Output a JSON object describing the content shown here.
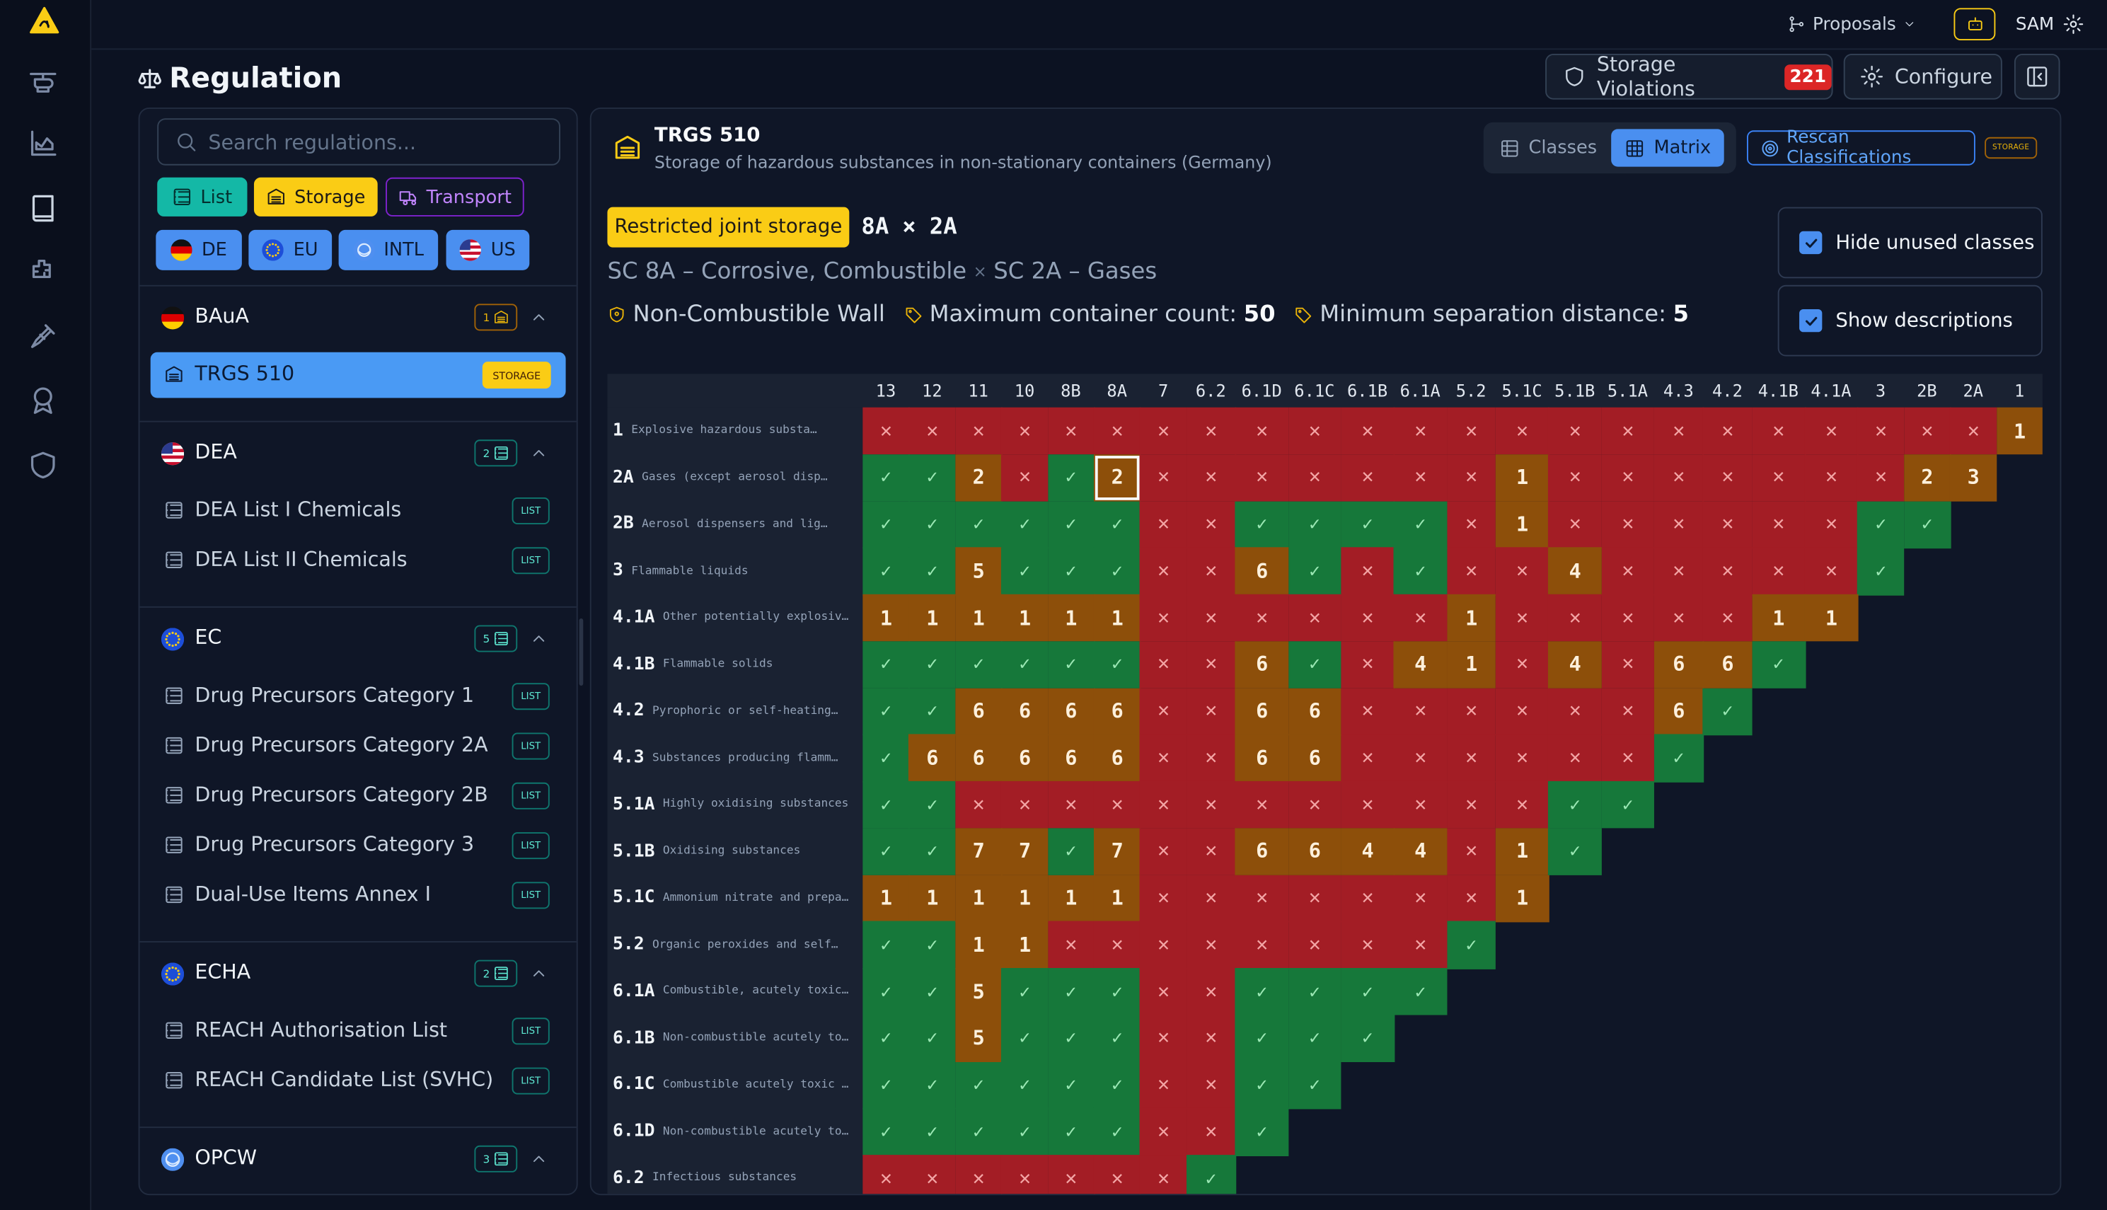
{
  "topbar": {
    "proposals": "Proposals",
    "user": "SAM"
  },
  "header": {
    "title": "Regulation",
    "violations_label": "Storage Violations",
    "violations_count": 221,
    "configure": "Configure"
  },
  "sidebar": {
    "search_placeholder": "Search regulations...",
    "modes": [
      "List",
      "Storage",
      "Transport"
    ],
    "regions": [
      "DE",
      "EU",
      "INTL",
      "US"
    ],
    "groups": [
      {
        "name": "BAuA",
        "count": 1,
        "items": [
          {
            "name": "TRGS 510",
            "tag": "STORAGE"
          }
        ]
      },
      {
        "name": "DEA",
        "count": 2,
        "items": [
          {
            "name": "DEA List I Chemicals",
            "tag": "LIST"
          },
          {
            "name": "DEA List II Chemicals",
            "tag": "LIST"
          }
        ]
      },
      {
        "name": "EC",
        "count": 5,
        "items": [
          {
            "name": "Drug Precursors Category 1",
            "tag": "LIST"
          },
          {
            "name": "Drug Precursors Category 2A",
            "tag": "LIST"
          },
          {
            "name": "Drug Precursors Category 2B",
            "tag": "LIST"
          },
          {
            "name": "Drug Precursors Category 3",
            "tag": "LIST"
          },
          {
            "name": "Dual-Use Items Annex I",
            "tag": "LIST"
          }
        ]
      },
      {
        "name": "ECHA",
        "count": 2,
        "items": [
          {
            "name": "REACH Authorisation List",
            "tag": "LIST"
          },
          {
            "name": "REACH Candidate List (SVHC)",
            "tag": "LIST"
          }
        ]
      },
      {
        "name": "OPCW",
        "count": 3,
        "items": []
      }
    ]
  },
  "regulation": {
    "title": "TRGS 510",
    "description": "Storage of hazardous substances in non-stationary containers (Germany)",
    "views": [
      "Classes",
      "Matrix"
    ],
    "rescan": "Rescan Classifications",
    "rescan_tag": "STORAGE"
  },
  "selection": {
    "rule": "Restricted joint storage",
    "row_class": "8A",
    "separator": "×",
    "col_class": "2A",
    "row_label": "SC 8A – Corrosive, Combustible",
    "col_label": "SC 2A – Gases",
    "requirements": [
      {
        "label": "Non-Combustible Wall"
      },
      {
        "label": "Maximum container count:",
        "value": 50
      },
      {
        "label": "Minimum separation distance:",
        "value": 5
      }
    ]
  },
  "options": [
    {
      "label": "Hide unused classes",
      "checked": true
    },
    {
      "label": "Show descriptions",
      "checked": true
    }
  ],
  "matrix": {
    "marks": {
      "prohibited": "✕",
      "permitted": "✓"
    },
    "columns": [
      "13",
      "12",
      "11",
      "10",
      "8B",
      "8A",
      "7",
      "6.2",
      "6.1D",
      "6.1C",
      "6.1B",
      "6.1A",
      "5.2",
      "5.1C",
      "5.1B",
      "5.1A",
      "4.3",
      "4.2",
      "4.1B",
      "4.1A",
      "3",
      "2B",
      "2A",
      "1"
    ],
    "rows": [
      {
        "code": "1",
        "description": "Explosive hazardous substa…",
        "cells": [
          "✕",
          "✕",
          "✕",
          "✕",
          "✕",
          "✕",
          "✕",
          "✕",
          "✕",
          "✕",
          "✕",
          "✕",
          "✕",
          "✕",
          "✕",
          "✕",
          "✕",
          "✕",
          "✕",
          "✕",
          "✕",
          "✕",
          "✕",
          1
        ]
      },
      {
        "code": "2A",
        "description": "Gases (except aerosol disp…",
        "cells": [
          "✓",
          "✓",
          2,
          "✕",
          "✓",
          2,
          "✕",
          "✕",
          "✕",
          "✕",
          "✕",
          "✕",
          "✕",
          1,
          "✕",
          "✕",
          "✕",
          "✕",
          "✕",
          "✕",
          "✕",
          2,
          3
        ]
      },
      {
        "code": "2B",
        "description": "Aerosol dispensers and lig…",
        "cells": [
          "✓",
          "✓",
          "✓",
          "✓",
          "✓",
          "✓",
          "✕",
          "✕",
          "✓",
          "✓",
          "✓",
          "✓",
          "✕",
          1,
          "✕",
          "✕",
          "✕",
          "✕",
          "✕",
          "✕",
          "✓",
          "✓"
        ]
      },
      {
        "code": "3",
        "description": "Flammable liquids",
        "cells": [
          "✓",
          "✓",
          5,
          "✓",
          "✓",
          "✓",
          "✕",
          "✕",
          6,
          "✓",
          "✕",
          "✓",
          "✕",
          "✕",
          4,
          "✕",
          "✕",
          "✕",
          "✕",
          "✕",
          "✓"
        ]
      },
      {
        "code": "4.1A",
        "description": "Other potentially explosiv…",
        "cells": [
          1,
          1,
          1,
          1,
          1,
          1,
          "✕",
          "✕",
          "✕",
          "✕",
          "✕",
          "✕",
          1,
          "✕",
          "✕",
          "✕",
          "✕",
          "✕",
          1,
          1
        ]
      },
      {
        "code": "4.1B",
        "description": "Flammable solids",
        "cells": [
          "✓",
          "✓",
          "✓",
          "✓",
          "✓",
          "✓",
          "✕",
          "✕",
          6,
          "✓",
          "✕",
          4,
          1,
          "✕",
          4,
          "✕",
          6,
          6,
          "✓"
        ]
      },
      {
        "code": "4.2",
        "description": "Pyrophoric or self-heating…",
        "cells": [
          "✓",
          "✓",
          6,
          6,
          6,
          6,
          "✕",
          "✕",
          6,
          6,
          "✕",
          "✕",
          "✕",
          "✕",
          "✕",
          "✕",
          6,
          "✓"
        ]
      },
      {
        "code": "4.3",
        "description": "Substances producing flamm…",
        "cells": [
          "✓",
          6,
          6,
          6,
          6,
          6,
          "✕",
          "✕",
          6,
          6,
          "✕",
          "✕",
          "✕",
          "✕",
          "✕",
          "✕",
          "✓"
        ]
      },
      {
        "code": "5.1A",
        "description": "Highly oxidising substances",
        "cells": [
          "✓",
          "✓",
          "✕",
          "✕",
          "✕",
          "✕",
          "✕",
          "✕",
          "✕",
          "✕",
          "✕",
          "✕",
          "✕",
          "✕",
          "✓",
          "✓"
        ]
      },
      {
        "code": "5.1B",
        "description": "Oxidising substances",
        "cells": [
          "✓",
          "✓",
          7,
          7,
          "✓",
          7,
          "✕",
          "✕",
          6,
          6,
          4,
          4,
          "✕",
          1,
          "✓"
        ]
      },
      {
        "code": "5.1C",
        "description": "Ammonium nitrate and prepa…",
        "cells": [
          1,
          1,
          1,
          1,
          1,
          1,
          "✕",
          "✕",
          "✕",
          "✕",
          "✕",
          "✕",
          "✕",
          1
        ]
      },
      {
        "code": "5.2",
        "description": "Organic peroxides and self…",
        "cells": [
          "✓",
          "✓",
          1,
          1,
          "✕",
          "✕",
          "✕",
          "✕",
          "✕",
          "✕",
          "✕",
          "✕",
          "✓"
        ]
      },
      {
        "code": "6.1A",
        "description": "Combustible, acutely toxic…",
        "cells": [
          "✓",
          "✓",
          5,
          "✓",
          "✓",
          "✓",
          "✕",
          "✕",
          "✓",
          "✓",
          "✓",
          "✓"
        ]
      },
      {
        "code": "6.1B",
        "description": "Non-combustible acutely to…",
        "cells": [
          "✓",
          "✓",
          5,
          "✓",
          "✓",
          "✓",
          "✕",
          "✕",
          "✓",
          "✓",
          "✓"
        ]
      },
      {
        "code": "6.1C",
        "description": "Combustible acutely toxic …",
        "cells": [
          "✓",
          "✓",
          "✓",
          "✓",
          "✓",
          "✓",
          "✕",
          "✕",
          "✓",
          "✓"
        ]
      },
      {
        "code": "6.1D",
        "description": "Non-combustible acutely to…",
        "cells": [
          "✓",
          "✓",
          "✓",
          "✓",
          "✓",
          "✓",
          "✕",
          "✕",
          "✓"
        ]
      },
      {
        "code": "6.2",
        "description": "Infectious substances",
        "cells": [
          "✕",
          "✕",
          "✕",
          "✕",
          "✕",
          "✕",
          "✕",
          "✓"
        ]
      }
    ]
  }
}
